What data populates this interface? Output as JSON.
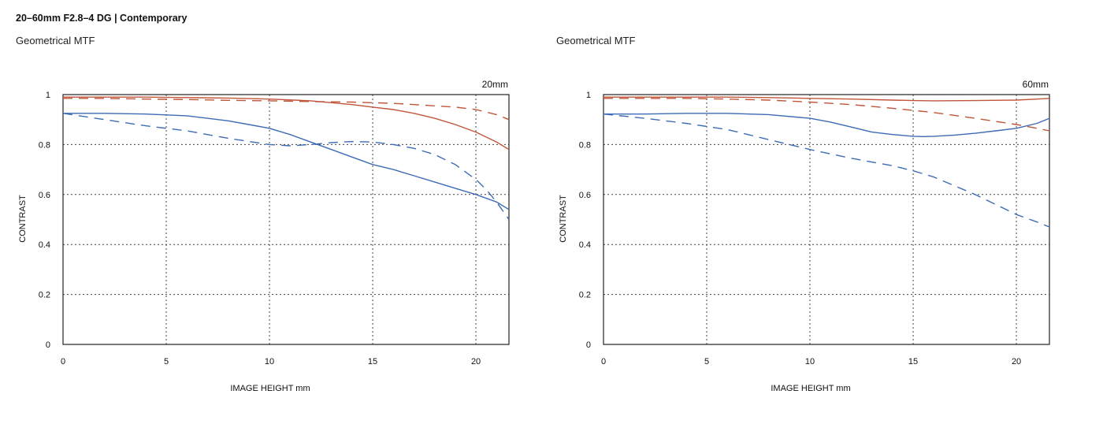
{
  "page": {
    "title": "20–60mm F2.8–4 DG | Contemporary"
  },
  "chart_data": [
    {
      "type": "line",
      "heading": "Geometrical MTF",
      "focal_label": "20mm",
      "xlabel": "IMAGE HEIGHT  mm",
      "ylabel": "CONTRAST",
      "xlim": [
        0,
        21.6
      ],
      "ylim": [
        0,
        1
      ],
      "x_ticks": [
        0,
        5,
        10,
        15,
        20
      ],
      "y_ticks": [
        0,
        0.2,
        0.4,
        0.6,
        0.8,
        1
      ],
      "y_tick_labels": [
        "0",
        "0.2",
        "0.4",
        "0.6",
        "0.8",
        "1"
      ],
      "grid": true,
      "series": [
        {
          "color": "#c0553a",
          "dash": "solid",
          "x": [
            0,
            2,
            4,
            6,
            8,
            10,
            12,
            14,
            15,
            16,
            17,
            18,
            19,
            20,
            21,
            21.6
          ],
          "y": [
            0.99,
            0.99,
            0.99,
            0.988,
            0.986,
            0.982,
            0.975,
            0.96,
            0.95,
            0.94,
            0.925,
            0.905,
            0.88,
            0.85,
            0.81,
            0.78
          ]
        },
        {
          "color": "#c0553a",
          "dash": "dashed",
          "x": [
            0,
            2,
            4,
            6,
            8,
            10,
            12,
            14,
            16,
            18,
            19,
            20,
            21,
            21.6
          ],
          "y": [
            0.985,
            0.985,
            0.982,
            0.98,
            0.977,
            0.975,
            0.972,
            0.97,
            0.965,
            0.955,
            0.95,
            0.94,
            0.92,
            0.9
          ]
        },
        {
          "color": "#3d6bb5",
          "dash": "solid",
          "x": [
            0,
            2,
            4,
            6,
            8,
            9,
            10,
            11,
            12,
            13,
            14,
            15,
            16,
            17,
            18,
            19,
            20,
            21,
            21.6
          ],
          "y": [
            0.925,
            0.925,
            0.922,
            0.915,
            0.895,
            0.88,
            0.865,
            0.84,
            0.81,
            0.78,
            0.75,
            0.72,
            0.7,
            0.675,
            0.65,
            0.625,
            0.6,
            0.57,
            0.54
          ]
        },
        {
          "color": "#3d6bb5",
          "dash": "dashed",
          "x": [
            0,
            2,
            4,
            6,
            8,
            10,
            11,
            12,
            13,
            14,
            15,
            16,
            17,
            18,
            19,
            20,
            20.5,
            21,
            21.6
          ],
          "y": [
            0.925,
            0.9,
            0.875,
            0.855,
            0.825,
            0.8,
            0.795,
            0.8,
            0.808,
            0.812,
            0.81,
            0.8,
            0.785,
            0.76,
            0.72,
            0.66,
            0.62,
            0.57,
            0.5
          ]
        }
      ]
    },
    {
      "type": "line",
      "heading": "Geometrical MTF",
      "focal_label": "60mm",
      "xlabel": "IMAGE HEIGHT  mm",
      "ylabel": "CONTRAST",
      "xlim": [
        0,
        21.6
      ],
      "ylim": [
        0,
        1
      ],
      "x_ticks": [
        0,
        5,
        10,
        15,
        20
      ],
      "y_ticks": [
        0,
        0.2,
        0.4,
        0.6,
        0.8,
        1
      ],
      "y_tick_labels": [
        "0",
        "0.2",
        "0.4",
        "0.6",
        "0.8",
        "1"
      ],
      "grid": true,
      "series": [
        {
          "color": "#c0553a",
          "dash": "solid",
          "x": [
            0,
            2,
            4,
            6,
            8,
            10,
            12,
            14,
            15,
            16,
            18,
            20,
            21,
            21.6
          ],
          "y": [
            0.99,
            0.99,
            0.99,
            0.99,
            0.988,
            0.985,
            0.982,
            0.978,
            0.976,
            0.975,
            0.976,
            0.978,
            0.982,
            0.985
          ]
        },
        {
          "color": "#c0553a",
          "dash": "dashed",
          "x": [
            0,
            2,
            4,
            6,
            8,
            10,
            12,
            14,
            16,
            18,
            20,
            21,
            21.6
          ],
          "y": [
            0.985,
            0.985,
            0.985,
            0.982,
            0.978,
            0.97,
            0.96,
            0.945,
            0.928,
            0.905,
            0.88,
            0.865,
            0.855
          ]
        },
        {
          "color": "#3d6bb5",
          "dash": "solid",
          "x": [
            0,
            2,
            4,
            6,
            8,
            10,
            11,
            12,
            13,
            14,
            15,
            15.5,
            16,
            17,
            18,
            19,
            20,
            21,
            21.6
          ],
          "y": [
            0.922,
            0.922,
            0.925,
            0.925,
            0.92,
            0.905,
            0.89,
            0.87,
            0.85,
            0.84,
            0.833,
            0.832,
            0.833,
            0.838,
            0.845,
            0.855,
            0.865,
            0.885,
            0.905
          ]
        },
        {
          "color": "#3d6bb5",
          "dash": "dashed",
          "x": [
            0,
            2,
            4,
            6,
            8,
            10,
            12,
            14,
            15,
            16,
            17,
            18,
            19,
            20,
            21,
            21.6
          ],
          "y": [
            0.922,
            0.905,
            0.885,
            0.86,
            0.82,
            0.78,
            0.745,
            0.715,
            0.695,
            0.67,
            0.635,
            0.6,
            0.56,
            0.52,
            0.49,
            0.47
          ]
        }
      ]
    }
  ]
}
